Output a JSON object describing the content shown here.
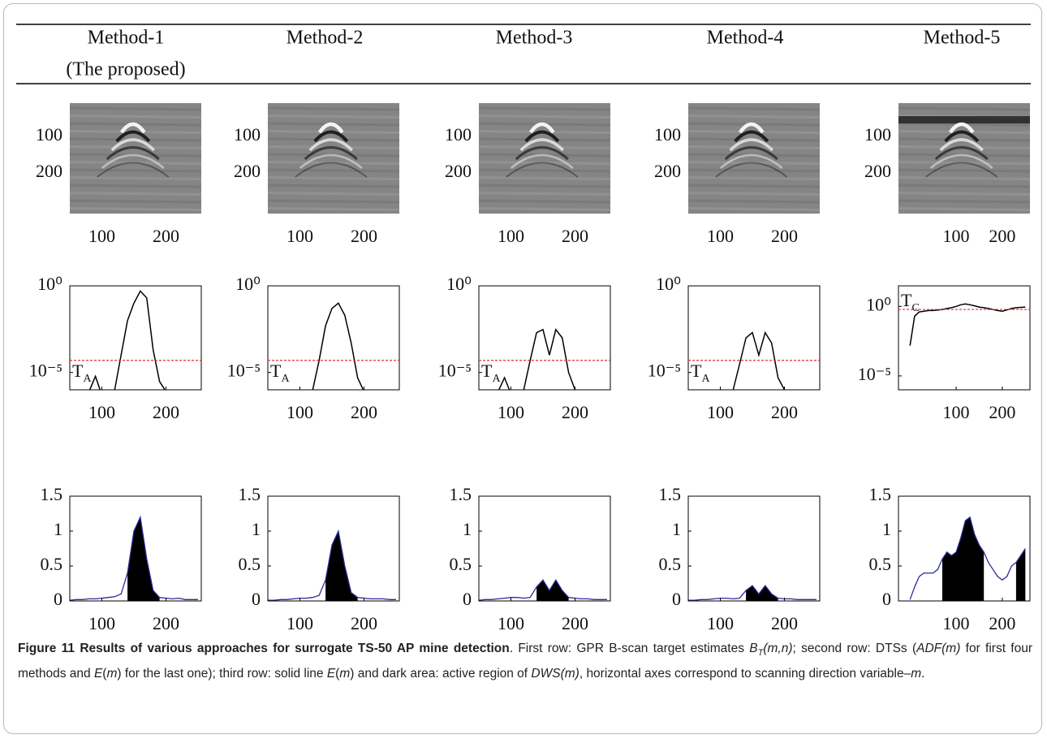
{
  "columns": [
    {
      "title": "Method-1",
      "subtitle": "(The proposed)"
    },
    {
      "title": "Method-2"
    },
    {
      "title": "Method-3"
    },
    {
      "title": "Method-4"
    },
    {
      "title": "Method-5"
    }
  ],
  "chart_data": [
    {
      "type": "image",
      "xlim": [
        50,
        255
      ],
      "ylim": [
        10,
        310
      ],
      "y_reversed": true,
      "xticks": [
        100,
        200
      ],
      "yticks": [
        100,
        200
      ]
    },
    {
      "type": "image",
      "xlim": [
        50,
        255
      ],
      "ylim": [
        10,
        310
      ],
      "y_reversed": true,
      "xticks": [
        100,
        200
      ],
      "yticks": [
        100,
        200
      ]
    },
    {
      "type": "image",
      "xlim": [
        50,
        255
      ],
      "ylim": [
        10,
        310
      ],
      "y_reversed": true,
      "xticks": [
        100,
        200
      ],
      "yticks": [
        100,
        200
      ]
    },
    {
      "type": "image",
      "xlim": [
        50,
        255
      ],
      "ylim": [
        10,
        310
      ],
      "y_reversed": true,
      "xticks": [
        100,
        200
      ],
      "yticks": [
        100,
        200
      ]
    },
    {
      "type": "image",
      "xlim": [
        -25,
        260
      ],
      "ylim": [
        10,
        310
      ],
      "y_reversed": true,
      "xticks": [
        100,
        200
      ],
      "yticks": [
        100,
        200
      ]
    },
    {
      "type": "line",
      "log_y": true,
      "x": [
        50,
        60,
        70,
        80,
        90,
        100,
        110,
        120,
        130,
        140,
        150,
        160,
        170,
        180,
        190,
        200,
        210,
        220,
        230,
        240,
        250
      ],
      "values": [
        null,
        null,
        null,
        8e-07,
        6e-06,
        5e-07,
        null,
        1e-06,
        0.0001,
        0.01,
        0.1,
        0.5,
        0.2,
        0.0002,
        3e-06,
        8e-07,
        null,
        null,
        null,
        null,
        null
      ],
      "color": "#000000",
      "xlim": [
        50,
        255
      ],
      "ylim": [
        1e-06,
        1
      ],
      "xticks": [
        100,
        200
      ],
      "yticks": [
        {
          "value": 1e-05,
          "label": "10⁻⁵"
        },
        {
          "value": 1,
          "label": "10⁰"
        }
      ],
      "threshold": 5e-05,
      "threshold_color": "#e0302c",
      "threshold_label": {
        "text": "T",
        "sub": "A"
      }
    },
    {
      "type": "line",
      "log_y": true,
      "x": [
        50,
        60,
        70,
        80,
        90,
        100,
        110,
        120,
        130,
        140,
        150,
        160,
        170,
        180,
        190,
        200,
        210,
        220,
        230,
        240,
        250
      ],
      "values": [
        null,
        null,
        null,
        null,
        null,
        8e-07,
        null,
        1e-06,
        5e-05,
        0.005,
        0.05,
        0.1,
        0.02,
        0.0005,
        5e-06,
        8e-07,
        null,
        null,
        null,
        null,
        null
      ],
      "color": "#000000",
      "xlim": [
        50,
        255
      ],
      "ylim": [
        1e-06,
        1
      ],
      "xticks": [
        100,
        200
      ],
      "yticks": [
        {
          "value": 1e-05,
          "label": "10⁻⁵"
        },
        {
          "value": 1,
          "label": "10⁰"
        }
      ],
      "threshold": 5e-05,
      "threshold_color": "#e0302c",
      "threshold_label": {
        "text": "T",
        "sub": "A"
      }
    },
    {
      "type": "line",
      "log_y": true,
      "x": [
        50,
        60,
        70,
        80,
        90,
        100,
        110,
        120,
        130,
        140,
        150,
        160,
        170,
        180,
        190,
        200,
        210,
        220,
        230,
        240,
        250
      ],
      "values": [
        null,
        null,
        null,
        8e-07,
        5e-06,
        6e-07,
        null,
        1e-06,
        5e-05,
        0.002,
        0.003,
        0.0001,
        0.003,
        0.001,
        1e-05,
        1e-06,
        null,
        null,
        null,
        null,
        null
      ],
      "color": "#000000",
      "xlim": [
        50,
        255
      ],
      "ylim": [
        1e-06,
        1
      ],
      "xticks": [
        100,
        200
      ],
      "yticks": [
        {
          "value": 1e-05,
          "label": "10⁻⁵"
        },
        {
          "value": 1,
          "label": "10⁰"
        }
      ],
      "threshold": 5e-05,
      "threshold_color": "#e0302c",
      "threshold_label": {
        "text": "T",
        "sub": "A"
      }
    },
    {
      "type": "line",
      "log_y": true,
      "x": [
        50,
        60,
        70,
        80,
        90,
        100,
        110,
        120,
        130,
        140,
        150,
        160,
        170,
        180,
        190,
        200,
        210,
        220,
        230,
        240,
        250
      ],
      "values": [
        null,
        null,
        null,
        null,
        null,
        8e-07,
        null,
        1e-06,
        3e-05,
        0.001,
        0.002,
        0.0001,
        0.002,
        0.0005,
        5e-06,
        1e-06,
        null,
        null,
        null,
        null,
        null
      ],
      "color": "#000000",
      "xlim": [
        50,
        255
      ],
      "ylim": [
        1e-06,
        1
      ],
      "xticks": [
        100,
        200
      ],
      "yticks": [
        {
          "value": 1e-05,
          "label": "10⁻⁵"
        },
        {
          "value": 1,
          "label": "10⁰"
        }
      ],
      "threshold": 5e-05,
      "threshold_color": "#e0302c",
      "threshold_label": {
        "text": "T",
        "sub": "A"
      }
    },
    {
      "type": "line",
      "log_y": true,
      "x": [
        0,
        10,
        20,
        30,
        40,
        50,
        60,
        70,
        80,
        90,
        100,
        110,
        120,
        130,
        140,
        150,
        160,
        170,
        180,
        190,
        200,
        210,
        220,
        230,
        240,
        250
      ],
      "values": [
        0.0015,
        0.2,
        0.4,
        0.45,
        0.5,
        0.5,
        0.55,
        0.6,
        0.7,
        0.8,
        1.0,
        1.3,
        1.5,
        1.3,
        1.1,
        0.9,
        0.8,
        0.7,
        0.6,
        0.5,
        0.45,
        0.55,
        0.7,
        0.8,
        0.85,
        0.9
      ],
      "color": "#000000",
      "xlim": [
        -25,
        260
      ],
      "ylim": [
        1e-06,
        30
      ],
      "xticks": [
        100,
        200
      ],
      "yticks": [
        {
          "value": 1e-05,
          "label": "10⁻⁵"
        },
        {
          "value": 1,
          "label": "10⁰"
        }
      ],
      "threshold": 0.6,
      "threshold_color": "#e0302c",
      "threshold_label": {
        "text": "T",
        "sub": "C"
      }
    },
    {
      "type": "area",
      "x": [
        50,
        60,
        70,
        80,
        90,
        100,
        110,
        120,
        130,
        140,
        150,
        160,
        170,
        180,
        190,
        200,
        210,
        220,
        230,
        240,
        250
      ],
      "line_values": [
        0.01,
        0.02,
        0.02,
        0.03,
        0.03,
        0.04,
        0.05,
        0.06,
        0.1,
        0.4,
        1.0,
        1.2,
        0.6,
        0.15,
        0.05,
        0.04,
        0.03,
        0.04,
        0.02,
        0.02,
        0.02
      ],
      "area_values": [
        null,
        null,
        null,
        null,
        null,
        null,
        null,
        null,
        null,
        0.4,
        1.0,
        1.2,
        0.6,
        0.15,
        0.05,
        null,
        null,
        null,
        null,
        null,
        null
      ],
      "line_color": "#2b2b9a",
      "area_color": "#000000",
      "xlim": [
        50,
        255
      ],
      "ylim": [
        0,
        1.5
      ],
      "xticks": [
        100,
        200
      ],
      "yticks": [
        0,
        0.5,
        1,
        1.5
      ]
    },
    {
      "type": "area",
      "x": [
        50,
        60,
        70,
        80,
        90,
        100,
        110,
        120,
        130,
        140,
        150,
        160,
        170,
        180,
        190,
        200,
        210,
        220,
        230,
        240,
        250
      ],
      "line_values": [
        0.01,
        0.01,
        0.02,
        0.02,
        0.03,
        0.04,
        0.04,
        0.05,
        0.08,
        0.3,
        0.8,
        1.0,
        0.5,
        0.12,
        0.05,
        0.04,
        0.03,
        0.03,
        0.03,
        0.02,
        0.02
      ],
      "area_values": [
        null,
        null,
        null,
        null,
        null,
        null,
        null,
        null,
        null,
        0.3,
        0.8,
        1.0,
        0.5,
        0.12,
        0.05,
        null,
        null,
        null,
        null,
        null,
        null
      ],
      "line_color": "#2b2b9a",
      "area_color": "#000000",
      "xlim": [
        50,
        255
      ],
      "ylim": [
        0,
        1.5
      ],
      "xticks": [
        100,
        200
      ],
      "yticks": [
        0,
        0.5,
        1,
        1.5
      ]
    },
    {
      "type": "area",
      "x": [
        50,
        60,
        70,
        80,
        90,
        100,
        110,
        120,
        130,
        140,
        150,
        160,
        170,
        180,
        190,
        200,
        210,
        220,
        230,
        240,
        250
      ],
      "line_values": [
        0.01,
        0.02,
        0.02,
        0.03,
        0.04,
        0.05,
        0.05,
        0.04,
        0.05,
        0.2,
        0.3,
        0.15,
        0.3,
        0.15,
        0.05,
        0.04,
        0.03,
        0.03,
        0.02,
        0.02,
        0.02
      ],
      "area_values": [
        null,
        null,
        null,
        null,
        null,
        null,
        null,
        null,
        null,
        0.2,
        0.3,
        0.15,
        0.3,
        0.15,
        0.05,
        null,
        null,
        null,
        null,
        null,
        null
      ],
      "line_color": "#2b2b9a",
      "area_color": "#000000",
      "xlim": [
        50,
        255
      ],
      "ylim": [
        0,
        1.5
      ],
      "xticks": [
        100,
        200
      ],
      "yticks": [
        0,
        0.5,
        1,
        1.5
      ]
    },
    {
      "type": "area",
      "x": [
        50,
        60,
        70,
        80,
        90,
        100,
        110,
        120,
        130,
        140,
        150,
        160,
        170,
        180,
        190,
        200,
        210,
        220,
        230,
        240,
        250
      ],
      "line_values": [
        0.01,
        0.01,
        0.02,
        0.02,
        0.03,
        0.04,
        0.04,
        0.03,
        0.04,
        0.15,
        0.22,
        0.1,
        0.22,
        0.1,
        0.04,
        0.03,
        0.03,
        0.02,
        0.02,
        0.02,
        0.02
      ],
      "area_values": [
        null,
        null,
        null,
        null,
        null,
        null,
        null,
        null,
        null,
        0.15,
        0.22,
        0.1,
        0.22,
        0.1,
        0.04,
        null,
        null,
        null,
        null,
        null,
        null
      ],
      "line_color": "#2b2b9a",
      "area_color": "#000000",
      "xlim": [
        50,
        255
      ],
      "ylim": [
        0,
        1.5
      ],
      "xticks": [
        100,
        200
      ],
      "yticks": [
        0,
        0.5,
        1,
        1.5
      ]
    },
    {
      "type": "area",
      "x": [
        0,
        10,
        20,
        30,
        40,
        50,
        60,
        70,
        80,
        90,
        100,
        110,
        120,
        130,
        140,
        150,
        160,
        170,
        180,
        190,
        200,
        210,
        220,
        230,
        240,
        250
      ],
      "line_values": [
        0.02,
        0.2,
        0.35,
        0.4,
        0.4,
        0.4,
        0.45,
        0.6,
        0.7,
        0.65,
        0.7,
        0.9,
        1.15,
        1.2,
        0.95,
        0.8,
        0.7,
        0.55,
        0.45,
        0.35,
        0.3,
        0.35,
        0.5,
        0.55,
        0.65,
        0.75
      ],
      "area_values": [
        null,
        null,
        null,
        null,
        null,
        null,
        null,
        0.6,
        0.7,
        0.65,
        0.7,
        0.9,
        1.15,
        1.2,
        0.95,
        0.8,
        0.7,
        null,
        null,
        null,
        null,
        null,
        null,
        0.55,
        0.65,
        0.75
      ],
      "line_color": "#2b2b9a",
      "area_color": "#000000",
      "xlim": [
        -25,
        260
      ],
      "ylim": [
        0,
        1.5
      ],
      "xticks": [
        100,
        200
      ],
      "yticks": [
        0,
        0.5,
        1,
        1.5
      ]
    }
  ],
  "caption": [
    {
      "text": "Figure 11 Results of various approaches for surrogate TS-50 AP mine detection",
      "style": "bold"
    },
    {
      "text": ". First row: GPR B-scan target estimates ",
      "style": "normal"
    },
    {
      "text": "B",
      "style": "italic"
    },
    {
      "text": "T",
      "style": "italic-sub"
    },
    {
      "text": "(m,n)",
      "style": "italic"
    },
    {
      "text": "; second row: DTSs (",
      "style": "normal"
    },
    {
      "text": "ADF(m)",
      "style": "italic"
    },
    {
      "text": " for first four methods and ",
      "style": "normal"
    },
    {
      "text": "E",
      "style": "italic"
    },
    {
      "text": "(",
      "style": "normal"
    },
    {
      "text": "m",
      "style": "italic"
    },
    {
      "text": ") for the last one); third row: solid line ",
      "style": "normal"
    },
    {
      "text": "E",
      "style": "italic"
    },
    {
      "text": "(",
      "style": "normal"
    },
    {
      "text": "m",
      "style": "italic"
    },
    {
      "text": ") and dark area: active region of ",
      "style": "normal"
    },
    {
      "text": "DWS(m)",
      "style": "italic"
    },
    {
      "text": ", horizontal axes correspond to scanning direction variable–",
      "style": "normal"
    },
    {
      "text": "m",
      "style": "italic"
    },
    {
      "text": ".",
      "style": "normal"
    }
  ]
}
